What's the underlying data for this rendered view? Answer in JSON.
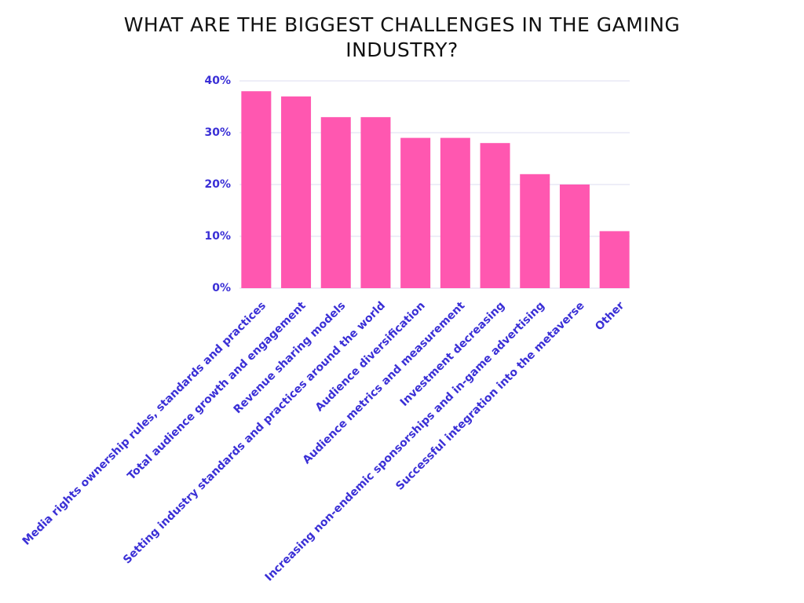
{
  "chart_data": {
    "type": "bar",
    "title": "WHAT ARE THE BIGGEST CHALLENGES IN THE GAMING INDUSTRY?",
    "categories": [
      "Media rights ownership rules, standards and practices",
      "Total audience growth and engagement",
      "Revenue sharing models",
      "Setting industry standards and practices around the world",
      "Audience diversification",
      "Audience metrics and measurement",
      "Investment decreasing",
      "Increasing non-endemic sponsorships and in-game advertising",
      "Successful integration into the metaverse",
      "Other"
    ],
    "values": [
      38,
      37,
      33,
      33,
      29,
      29,
      28,
      22,
      20,
      11
    ],
    "color": "#ff57b0",
    "ylim": [
      0,
      40
    ],
    "yticks": [
      {
        "value": 0,
        "label": "0%"
      },
      {
        "value": 10,
        "label": "10%"
      },
      {
        "value": 20,
        "label": "20%"
      },
      {
        "value": 30,
        "label": "30%"
      },
      {
        "value": 40,
        "label": "40%"
      }
    ],
    "grid": true
  }
}
